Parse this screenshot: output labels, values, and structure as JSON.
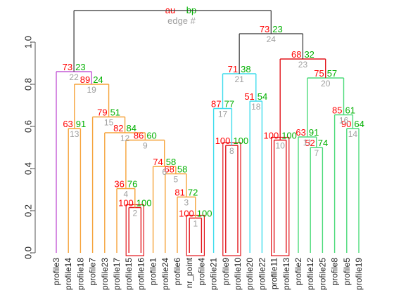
{
  "chart_data": {
    "type": "dendrogram",
    "title": "",
    "xlabel": "",
    "ylabel": "",
    "ylim": [
      0,
      1.0
    ],
    "yticks": [
      0.0,
      0.2,
      0.4,
      0.6,
      0.8,
      1.0
    ],
    "y_tick_labels": [
      "0.0",
      "0.2",
      "0.4",
      "0.6",
      "0.8",
      "1.0"
    ],
    "legend": {
      "au": "au",
      "bp": "bp",
      "edge": "edge #"
    },
    "colors": {
      "au": "#ff0000",
      "bp": "#00b000",
      "edge": "#a0a0a0",
      "root": "#333333",
      "purple": "#c45ad6",
      "orange": "#f6a33a",
      "cyan": "#3fdcec",
      "red": "#e2151b",
      "green": "#4ddb7a",
      "axis": "#555555"
    },
    "leaves": [
      "profile3",
      "profile14",
      "profile18",
      "profile7",
      "profile23",
      "profile17",
      "profile15",
      "profile16",
      "profile1",
      "profile24",
      "profile6",
      "nr_point",
      "profile4",
      "profile21",
      "profile9",
      "profile10",
      "profile20",
      "profile22",
      "profile11",
      "profile13",
      "profile2",
      "profile12",
      "profile25",
      "profile8",
      "profile5",
      "profile19"
    ],
    "merges": [
      {
        "edge": "1",
        "au": "100",
        "bp": "100",
        "height": 0.165,
        "a": "L11",
        "b": "L12",
        "color": "red"
      },
      {
        "edge": "2",
        "au": "100",
        "bp": "100",
        "height": 0.215,
        "a": "L6",
        "b": "L7",
        "color": "red"
      },
      {
        "edge": "3",
        "au": "81",
        "bp": "72",
        "height": 0.265,
        "a": "L10",
        "b": "E1",
        "color": "orange"
      },
      {
        "edge": "4",
        "au": "36",
        "bp": "76",
        "height": 0.305,
        "a": "L5",
        "b": "E2",
        "color": "orange"
      },
      {
        "edge": "5",
        "au": "68",
        "bp": "58",
        "height": 0.375,
        "a": "L9",
        "b": "E3",
        "color": "orange"
      },
      {
        "edge": "6",
        "au": "74",
        "bp": "58",
        "height": 0.41,
        "a": "L8",
        "b": "E5",
        "color": "orange"
      },
      {
        "edge": "7",
        "au": "52",
        "bp": "74",
        "height": 0.5,
        "a": "L21",
        "b": "L22",
        "color": "green"
      },
      {
        "edge": "8",
        "au": "100",
        "bp": "100",
        "height": 0.51,
        "a": "L14",
        "b": "L15",
        "color": "red"
      },
      {
        "edge": "9",
        "au": "86",
        "bp": "60",
        "height": 0.535,
        "a": "E4",
        "b": "E6",
        "color": "orange"
      },
      {
        "edge": "10",
        "au": "100",
        "bp": "100",
        "height": 0.535,
        "a": "L18",
        "b": "L19",
        "color": "red"
      },
      {
        "edge": "11",
        "au": "63",
        "bp": "91",
        "height": 0.55,
        "a": "L20",
        "b": "E7",
        "color": "green"
      },
      {
        "edge": "12",
        "au": "82",
        "bp": "84",
        "height": 0.57,
        "a": "L4",
        "b": "E9",
        "color": "orange"
      },
      {
        "edge": "13",
        "au": "63",
        "bp": "91",
        "height": 0.59,
        "a": "L1",
        "b": "L2",
        "color": "orange"
      },
      {
        "edge": "14",
        "au": "90",
        "bp": "64",
        "height": 0.59,
        "a": "L24",
        "b": "L25",
        "color": "green"
      },
      {
        "edge": "15",
        "au": "79",
        "bp": "51",
        "height": 0.645,
        "a": "L3",
        "b": "E12",
        "color": "orange"
      },
      {
        "edge": "16",
        "au": "85",
        "bp": "61",
        "height": 0.655,
        "a": "L23",
        "b": "E14",
        "color": "green"
      },
      {
        "edge": "17",
        "au": "87",
        "bp": "77",
        "height": 0.685,
        "a": "L13",
        "b": "E8",
        "color": "cyan"
      },
      {
        "edge": "18",
        "au": "51",
        "bp": "54",
        "height": 0.72,
        "a": "L16",
        "b": "L17",
        "color": "cyan"
      },
      {
        "edge": "19",
        "au": "89",
        "bp": "24",
        "height": 0.8,
        "a": "E13",
        "b": "E15",
        "color": "orange"
      },
      {
        "edge": "20",
        "au": "75",
        "bp": "57",
        "height": 0.83,
        "a": "E11",
        "b": "E16",
        "color": "green"
      },
      {
        "edge": "21",
        "au": "71",
        "bp": "38",
        "height": 0.85,
        "a": "E17",
        "b": "E18",
        "color": "cyan"
      },
      {
        "edge": "22",
        "au": "73",
        "bp": "23",
        "height": 0.86,
        "a": "L0",
        "b": "E19",
        "color": "purple"
      },
      {
        "edge": "23",
        "au": "68",
        "bp": "32",
        "height": 0.92,
        "a": "E10",
        "b": "E20",
        "color": "red"
      },
      {
        "edge": "24",
        "au": "73",
        "bp": "23",
        "height": 1.04,
        "a": "E21",
        "b": "E23",
        "color": "root"
      },
      {
        "edge": "",
        "au": "",
        "bp": "",
        "height": 1.15,
        "a": "E22",
        "b": "E24",
        "color": "root"
      }
    ]
  }
}
